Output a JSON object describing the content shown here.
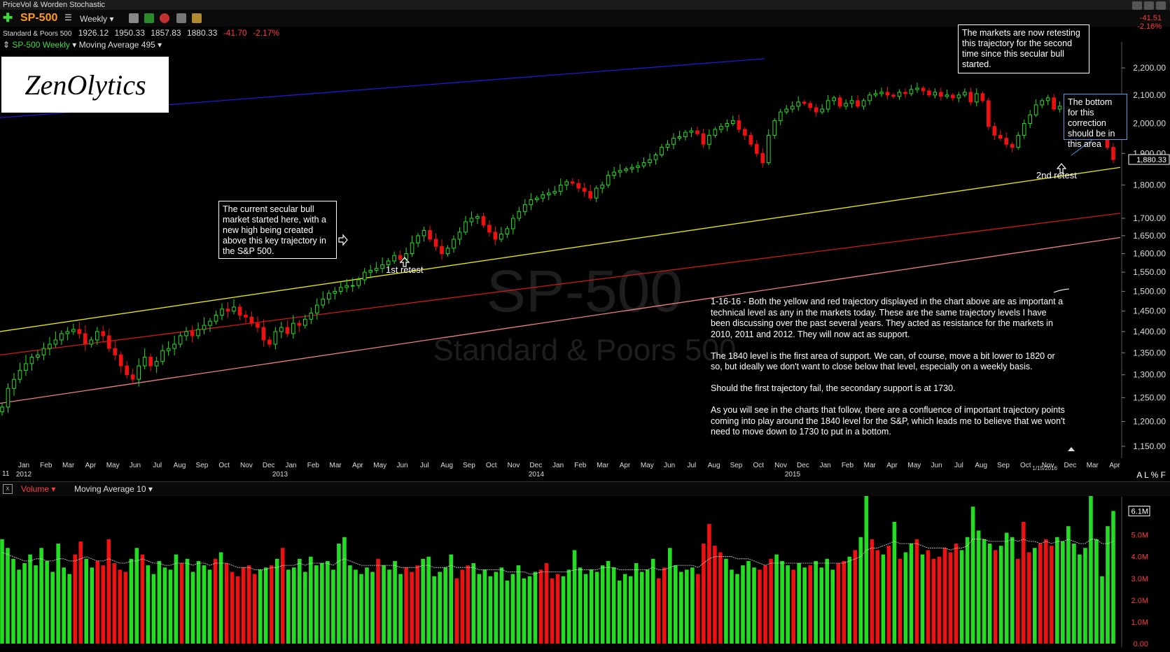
{
  "window": {
    "title": "PriceVol & Worden Stochastic"
  },
  "toolbar": {
    "symbol": "SP-500",
    "period": "Weekly"
  },
  "quote": {
    "name": "Standard & Poors 500",
    "open": "1926.12",
    "high": "1950.33",
    "low": "1857.83",
    "close": "1880.33",
    "change": "-41.70",
    "change_pct": "-2.17%"
  },
  "right_quote": {
    "change": "-41.51",
    "change_pct": "-2.16%"
  },
  "series_row": {
    "series": "SP-500 Weekly",
    "indicator": "Moving Average 495"
  },
  "logo": {
    "text": "ZenOlytics"
  },
  "watermark": {
    "symbol": "SP-500",
    "name": "Standard & Poors 500"
  },
  "annotations": {
    "bull_start": "The current secular bull market started here, with a new high being created above this key trajectory in the S&P 500.",
    "retesting": "The markets are now retesting this trajectory for the second time since this secular bull started.",
    "bottom": "The bottom for this correction should be in this area",
    "first_retest": "1st retest",
    "second_retest": "2nd retest"
  },
  "commentary": [
    "1-16-16 - Both the yellow and red trajectory displayed in the chart above are as important a technical level as any in the markets today. These are the same trajectory levels I have been discussing over the past several years. They acted as resistance for the markets in 2010, 2011 and 2012. They will now act as support.",
    "The 1840 level is the first area of support. We can, of course, move a bit lower to 1820 or so, but ideally we don't want to close below that level, especially on a weekly basis.",
    "Should the first trajectory fail, the secondary support is at 1730.",
    "As you will see in the charts that follow, there are a confluence of important trajectory points coming into play around the 1840 level for the S&P, which leads me to believe that we won't need to move down to 1730 to put in a bottom."
  ],
  "date_label": "1/15/2016",
  "axis_mode": "A L % F",
  "volume_header": {
    "series": "Volume",
    "indicator": "Moving Average 10"
  },
  "colors": {
    "up": "#22dd22",
    "down": "#ee1111",
    "yellow_line": "#e8e800",
    "red_line": "#d01818",
    "pink_line": "#f08080",
    "blue_line": "#1a1ad8",
    "symbol": "#ff9a1a"
  },
  "chart_data": [
    {
      "type": "candlestick",
      "title": "SP-500 Weekly",
      "ylim": [
        1120,
        2300
      ],
      "y_ticks": [
        "2,200.00",
        "2,100.00",
        "2,000.00",
        "1,900.00",
        "1,800.00",
        "1,700.00",
        "1,650.00",
        "1,600.00",
        "1,550.00",
        "1,500.00",
        "1,450.00",
        "1,400.00",
        "1,350.00",
        "1,300.00",
        "1,250.00",
        "1,200.00",
        "1,150.00"
      ],
      "last_price_label": "1,880.33",
      "x_months": [
        "Jan",
        "Feb",
        "Mar",
        "Apr",
        "May",
        "Jun",
        "Jul",
        "Aug",
        "Sep",
        "Oct",
        "Nov",
        "Dec",
        "Jan",
        "Feb",
        "Mar",
        "Apr",
        "May",
        "Jun",
        "Jul",
        "Aug",
        "Sep",
        "Oct",
        "Nov",
        "Dec",
        "Jan",
        "Feb",
        "Mar",
        "Apr",
        "May",
        "Jun",
        "Jul",
        "Aug",
        "Sep",
        "Oct",
        "Nov",
        "Dec",
        "Jan",
        "Feb",
        "Mar",
        "Apr",
        "May",
        "Jun",
        "Jul",
        "Aug",
        "Sep",
        "Oct",
        "Nov",
        "Dec",
        "Mar",
        "Apr"
      ],
      "x_years": [
        "2012",
        "2013",
        "2014",
        "2015"
      ],
      "x_start_label": "11",
      "closes": [
        1230,
        1270,
        1290,
        1310,
        1325,
        1340,
        1345,
        1360,
        1370,
        1380,
        1395,
        1400,
        1405,
        1395,
        1370,
        1380,
        1400,
        1390,
        1360,
        1345,
        1320,
        1300,
        1290,
        1320,
        1340,
        1320,
        1330,
        1355,
        1360,
        1370,
        1390,
        1400,
        1390,
        1405,
        1415,
        1425,
        1440,
        1455,
        1450,
        1460,
        1440,
        1435,
        1420,
        1410,
        1380,
        1370,
        1400,
        1410,
        1395,
        1420,
        1415,
        1430,
        1445,
        1465,
        1480,
        1495,
        1500,
        1510,
        1515,
        1515,
        1530,
        1550,
        1555,
        1560,
        1570,
        1580,
        1595,
        1585,
        1600,
        1630,
        1650,
        1665,
        1640,
        1620,
        1600,
        1615,
        1640,
        1660,
        1690,
        1700,
        1705,
        1680,
        1660,
        1640,
        1655,
        1670,
        1700,
        1720,
        1740,
        1755,
        1760,
        1770,
        1775,
        1780,
        1800,
        1810,
        1805,
        1790,
        1780,
        1760,
        1790,
        1800,
        1830,
        1840,
        1845,
        1850,
        1855,
        1860,
        1870,
        1880,
        1895,
        1920,
        1930,
        1950,
        1955,
        1970,
        1975,
        1965,
        1930,
        1960,
        1980,
        1990,
        2000,
        2010,
        1980,
        1960,
        1930,
        1900,
        1870,
        1960,
        2010,
        2040,
        2050,
        2060,
        2075,
        2070,
        2055,
        2040,
        2050,
        2080,
        2090,
        2060,
        2070,
        2080,
        2060,
        2080,
        2100,
        2105,
        2110,
        2100,
        2095,
        2110,
        2105,
        2120,
        2125,
        2115,
        2100,
        2110,
        2095,
        2100,
        2090,
        2100,
        2110,
        2075,
        2105,
        2080,
        1990,
        1960,
        1950,
        1930,
        1920,
        1960,
        2000,
        2030,
        2065,
        2080,
        2090,
        2050,
        2060,
        2080,
        2090,
        2060,
        2040,
        2010,
        2045,
        1990,
        1920,
        1880
      ],
      "lines": [
        {
          "name": "yellow",
          "y_start": 1400,
          "y_end": 1855
        },
        {
          "name": "red",
          "y_start": 1345,
          "y_end": 1715
        },
        {
          "name": "pink",
          "y_start": 1238,
          "y_end": 1645
        },
        {
          "name": "blue",
          "y_start": 2020,
          "y_end": 2235
        }
      ]
    },
    {
      "type": "bar",
      "title": "Volume",
      "ylim": [
        0,
        6500000
      ],
      "y_ticks": [
        "5.0M",
        "4.0M",
        "3.0M",
        "2.0M",
        "1.0M",
        "0.00"
      ],
      "last_volume_label": "6.1M",
      "values": [
        4.8,
        4.4,
        3.9,
        3.4,
        3.7,
        4.1,
        3.6,
        4.4,
        3.8,
        3.3,
        4.6,
        3.5,
        3.2,
        4.1,
        4.7,
        3.9,
        3.5,
        3.8,
        3.6,
        4.8,
        3.7,
        3.4,
        3.3,
        3.9,
        4.4,
        4.1,
        3.6,
        3.2,
        3.8,
        3.5,
        3.4,
        4.1,
        3.7,
        3.9,
        3.3,
        3.8,
        3.6,
        3.4,
        3.9,
        4.2,
        3.7,
        3.3,
        3.1,
        3.5,
        3.6,
        3.2,
        3.4,
        3.5,
        3.6,
        3.9,
        4.4,
        3.4,
        3.5,
        3.9,
        3.3,
        4.0,
        3.6,
        3.7,
        3.8,
        3.4,
        4.6,
        4.9,
        3.6,
        3.4,
        3.2,
        3.5,
        3.3,
        3.9,
        3.6,
        3.4,
        3.8,
        3.2,
        3.5,
        3.3,
        3.6,
        3.9,
        4.0,
        3.1,
        3.3,
        3.5,
        4.1,
        3.0,
        3.4,
        3.6,
        3.7,
        3.2,
        3.4,
        3.1,
        3.3,
        3.5,
        2.9,
        3.2,
        3.6,
        3.0,
        3.1,
        3.3,
        3.4,
        3.7,
        3.0,
        3.2,
        3.1,
        3.4,
        4.3,
        3.5,
        3.2,
        3.4,
        3.3,
        3.6,
        3.8,
        3.5,
        2.9,
        3.2,
        3.1,
        3.7,
        3.3,
        3.4,
        3.9,
        3.0,
        3.5,
        4.4,
        3.6,
        3.3,
        3.4,
        3.5,
        3.2,
        4.6,
        5.5,
        4.5,
        4.2,
        3.9,
        3.4,
        3.2,
        3.6,
        3.8,
        3.5,
        3.4,
        3.6,
        3.9,
        4.1,
        3.8,
        3.6,
        3.4,
        3.7,
        3.5,
        3.6,
        3.8,
        3.5,
        3.9,
        3.4,
        3.7,
        3.8,
        4.0,
        4.3,
        4.9,
        6.8,
        4.8,
        4.3,
        4.1,
        4.5,
        5.6,
        3.9,
        4.2,
        4.6,
        4.8,
        4.1,
        4.3,
        3.9,
        4.0,
        4.4,
        4.2,
        4.6,
        4.3,
        4.9,
        6.3,
        5.2,
        4.8,
        4.6,
        4.3,
        4.5,
        5.1,
        4.9,
        3.9,
        5.6,
        4.2,
        4.4,
        4.6,
        4.8,
        4.5,
        4.9,
        4.7,
        5.4,
        4.6,
        4.1,
        4.4,
        6.8,
        4.8,
        3.1,
        5.4,
        6.1
      ],
      "moving_average_10": [
        4.2,
        4.1,
        4.0,
        3.9,
        3.8,
        3.8,
        3.9,
        3.9,
        3.8,
        3.8,
        3.9,
        3.9,
        3.8,
        3.8,
        3.9,
        4.0,
        3.9,
        3.8,
        3.8,
        3.9,
        3.8,
        3.7,
        3.7,
        3.8,
        3.8,
        3.9,
        3.8,
        3.7,
        3.7,
        3.6,
        3.6,
        3.7,
        3.7,
        3.7,
        3.6,
        3.7,
        3.7,
        3.6,
        3.7,
        3.7,
        3.7,
        3.6,
        3.5,
        3.5,
        3.5,
        3.4,
        3.4,
        3.4,
        3.5,
        3.5,
        3.6,
        3.6,
        3.6,
        3.7,
        3.6,
        3.7,
        3.7,
        3.7,
        3.7,
        3.6,
        3.8,
        3.9,
        3.8,
        3.7,
        3.6,
        3.6,
        3.6,
        3.6,
        3.6,
        3.6,
        3.6,
        3.5,
        3.5,
        3.5,
        3.5,
        3.6,
        3.6,
        3.5,
        3.5,
        3.5,
        3.6,
        3.5,
        3.5,
        3.5,
        3.5,
        3.4,
        3.4,
        3.4,
        3.4,
        3.4,
        3.3,
        3.3,
        3.3,
        3.3,
        3.2,
        3.2,
        3.3,
        3.3,
        3.3,
        3.3,
        3.3,
        3.3,
        3.4,
        3.4,
        3.4,
        3.4,
        3.4,
        3.5,
        3.5,
        3.5,
        3.4,
        3.4,
        3.4,
        3.4,
        3.4,
        3.4,
        3.5,
        3.4,
        3.4,
        3.5,
        3.6,
        3.6,
        3.6,
        3.6,
        3.5,
        3.7,
        3.9,
        4.0,
        4.0,
        4.0,
        4.0,
        3.9,
        3.9,
        3.9,
        3.8,
        3.7,
        3.6,
        3.7,
        3.7,
        3.7,
        3.7,
        3.7,
        3.7,
        3.7,
        3.7,
        3.7,
        3.7,
        3.7,
        3.7,
        3.7,
        3.7,
        3.8,
        3.9,
        4.0,
        4.3,
        4.4,
        4.4,
        4.5,
        4.6,
        4.7,
        4.6,
        4.6,
        4.6,
        4.6,
        4.5,
        4.4,
        4.4,
        4.4,
        4.4,
        4.3,
        4.4,
        4.4,
        4.5,
        4.8,
        4.8,
        4.8,
        4.7,
        4.7,
        4.7,
        4.7,
        4.8,
        4.7,
        4.8,
        4.7,
        4.7,
        4.6,
        4.7,
        4.6,
        4.7,
        4.7,
        4.8,
        4.7,
        4.6,
        4.6,
        4.8,
        4.8,
        4.6,
        4.6,
        4.7
      ]
    }
  ]
}
